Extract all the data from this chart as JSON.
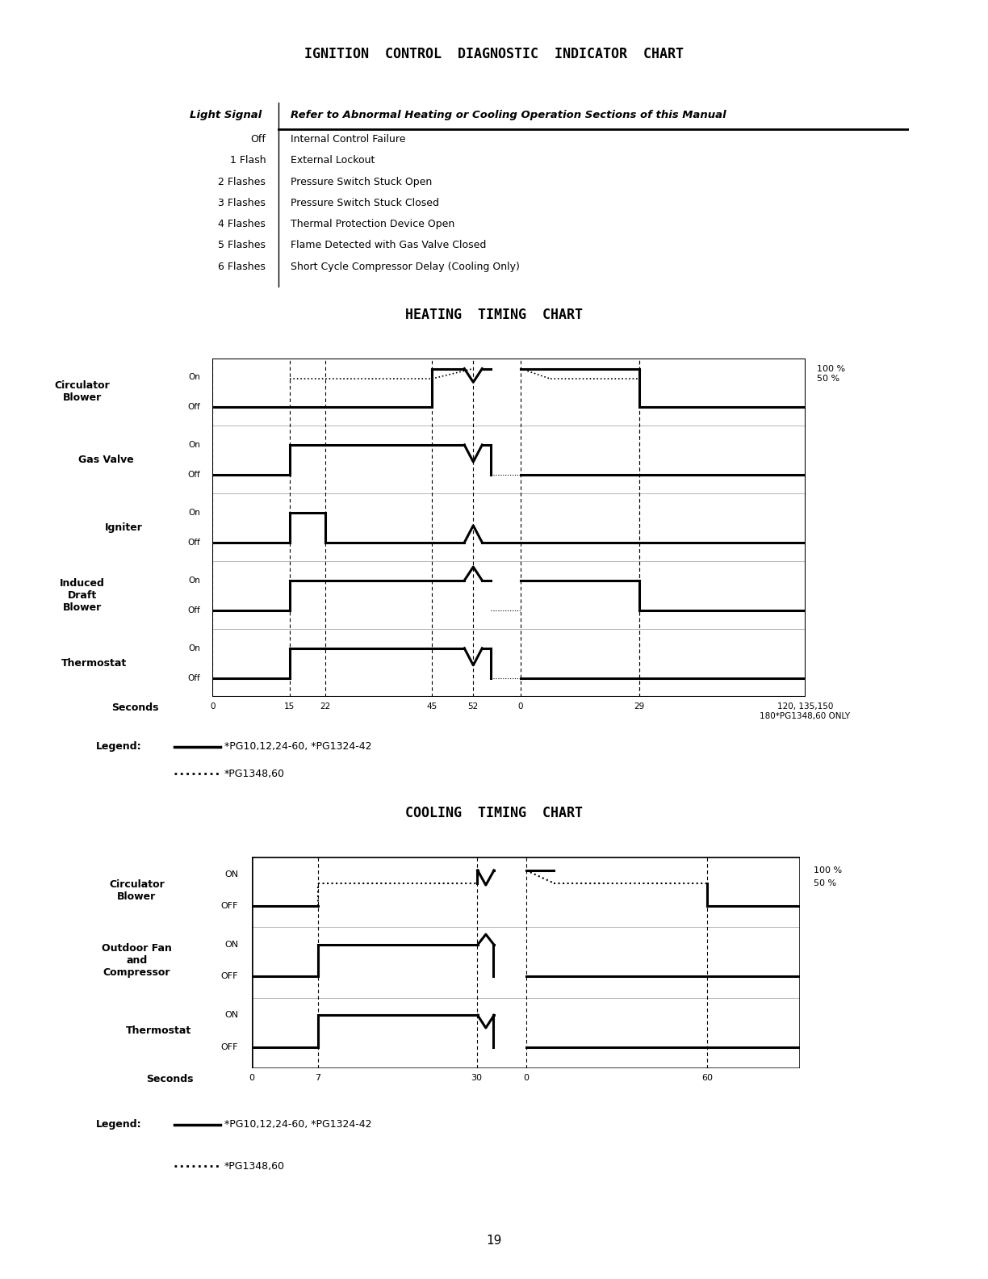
{
  "title_main": "IGNITION  CONTROL  DIAGNOSTIC  INDICATOR  CHART",
  "table_headers": [
    "Light Signal",
    "Refer to Abnormal Heating or Cooling Operation Sections of this Manual"
  ],
  "table_rows": [
    [
      "Off",
      "Internal Control Failure"
    ],
    [
      "1 Flash",
      "External Lockout"
    ],
    [
      "2 Flashes",
      "Pressure Switch Stuck Open"
    ],
    [
      "3 Flashes",
      "Pressure Switch Stuck Closed"
    ],
    [
      "4 Flashes",
      "Thermal Protection Device Open"
    ],
    [
      "5 Flashes",
      "Flame Detected with Gas Valve Closed"
    ],
    [
      "6 Flashes",
      "Short Cycle Compressor Delay (Cooling Only)"
    ]
  ],
  "heating_title": "HEATING  TIMING  CHART",
  "cooling_title": "COOLING  TIMING  CHART",
  "page_number": "19",
  "bg_color": "#ffffff"
}
